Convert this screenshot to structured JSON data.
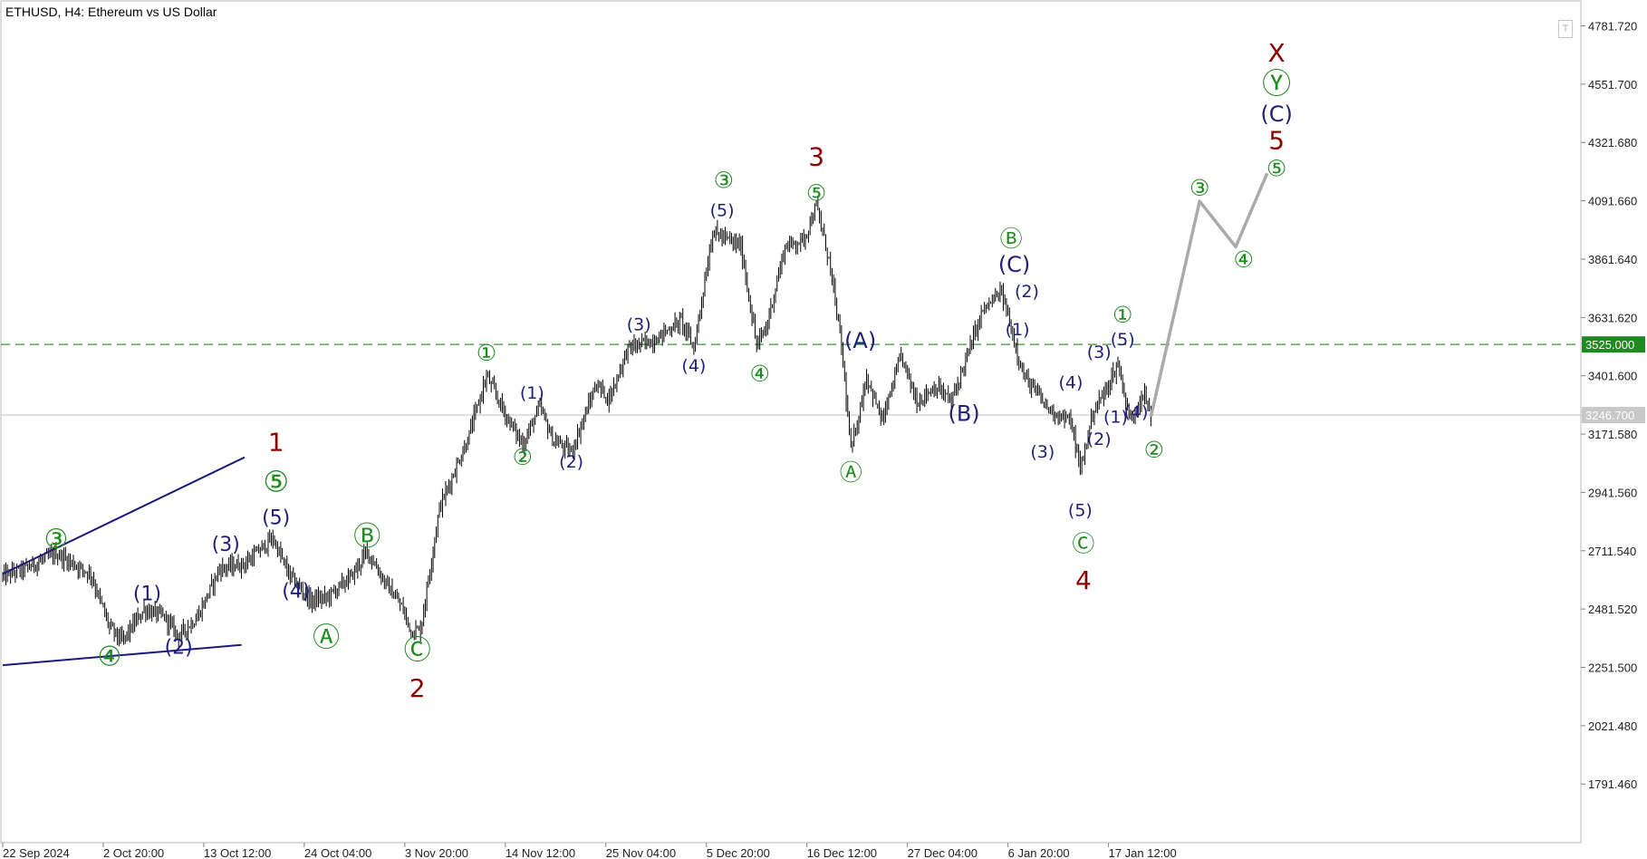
{
  "header": {
    "title": "ETHUSD, H4:  Ethereum vs US Dollar"
  },
  "colors": {
    "bg": "#ffffff",
    "bars": "#000000",
    "target_line": "#2e9e2e",
    "target_label_bg": "#1f8a1f",
    "price_line": "#c0c0c0",
    "price_label_bg": "#c8c8c8",
    "projection": "#aaaaaa",
    "trend_lines": "#1a1a7a",
    "wave_green": "#1f8a1f",
    "wave_navy": "#1f1f7a",
    "wave_red": "#8b0000"
  },
  "chart_data": {
    "type": "candlestick",
    "symbol": "ETHUSD",
    "timeframe": "H4",
    "title": "ETHUSD, H4:  Ethereum vs US Dollar",
    "ylim": [
      1560,
      4880
    ],
    "y_ticks": [
      "4781.720",
      "4551.700",
      "4321.680",
      "4091.660",
      "3861.640",
      "3631.620",
      "3401.600",
      "3171.580",
      "2941.560",
      "2711.540",
      "2481.520",
      "2251.500",
      "2021.480",
      "1791.460"
    ],
    "x_ticks": [
      "22 Sep 2024",
      "2 Oct 20:00",
      "13 Oct 12:00",
      "24 Oct 04:00",
      "3 Nov 20:00",
      "14 Nov 12:00",
      "25 Nov 04:00",
      "5 Dec 20:00",
      "16 Dec 12:00",
      "27 Dec 04:00",
      "6 Jan 20:00",
      "17 Jan 12:00"
    ],
    "x_tick_index": [
      0,
      64,
      128,
      192,
      256,
      320,
      384,
      448,
      512,
      576,
      640,
      704
    ],
    "n_bars": 732,
    "anchors": [
      [
        0,
        2610
      ],
      [
        14,
        2640
      ],
      [
        34,
        2700
      ],
      [
        56,
        2620
      ],
      [
        68,
        2410
      ],
      [
        76,
        2355
      ],
      [
        90,
        2480
      ],
      [
        103,
        2450
      ],
      [
        112,
        2375
      ],
      [
        124,
        2450
      ],
      [
        138,
        2640
      ],
      [
        154,
        2660
      ],
      [
        172,
        2760
      ],
      [
        182,
        2620
      ],
      [
        196,
        2515
      ],
      [
        206,
        2525
      ],
      [
        222,
        2610
      ],
      [
        232,
        2710
      ],
      [
        244,
        2580
      ],
      [
        254,
        2490
      ],
      [
        260,
        2395
      ],
      [
        266,
        2400
      ],
      [
        278,
        2880
      ],
      [
        296,
        3150
      ],
      [
        308,
        3400
      ],
      [
        320,
        3250
      ],
      [
        331,
        3130
      ],
      [
        342,
        3280
      ],
      [
        350,
        3150
      ],
      [
        362,
        3100
      ],
      [
        378,
        3370
      ],
      [
        386,
        3310
      ],
      [
        398,
        3510
      ],
      [
        414,
        3540
      ],
      [
        432,
        3620
      ],
      [
        440,
        3510
      ],
      [
        452,
        3970
      ],
      [
        470,
        3910
      ],
      [
        480,
        3520
      ],
      [
        486,
        3590
      ],
      [
        498,
        3910
      ],
      [
        510,
        3940
      ],
      [
        518,
        4070
      ],
      [
        526,
        3860
      ],
      [
        534,
        3520
      ],
      [
        540,
        3100
      ],
      [
        550,
        3400
      ],
      [
        560,
        3220
      ],
      [
        572,
        3480
      ],
      [
        582,
        3300
      ],
      [
        594,
        3360
      ],
      [
        604,
        3300
      ],
      [
        614,
        3480
      ],
      [
        624,
        3660
      ],
      [
        636,
        3730
      ],
      [
        650,
        3400
      ],
      [
        666,
        3270
      ],
      [
        680,
        3220
      ],
      [
        686,
        3030
      ],
      [
        694,
        3260
      ],
      [
        702,
        3340
      ],
      [
        710,
        3450
      ],
      [
        718,
        3220
      ],
      [
        726,
        3340
      ],
      [
        731,
        3240
      ]
    ],
    "current_price": "3246.700",
    "target_level": {
      "value": 3525,
      "label": "3525.000"
    },
    "projection_path": [
      [
        731,
        3240
      ],
      [
        762,
        4090
      ],
      [
        785,
        3910
      ],
      [
        805,
        4200
      ]
    ],
    "trend_lines": [
      {
        "from": [
          0,
          2620
        ],
        "to": [
          154,
          3080
        ]
      },
      {
        "from": [
          0,
          2260
        ],
        "to": [
          152,
          2340
        ]
      }
    ],
    "wave_labels": [
      {
        "text": "③",
        "i": 34,
        "price": 2700,
        "style": "green-circle",
        "pos": "above"
      },
      {
        "text": "④",
        "i": 68,
        "price": 2355,
        "style": "green-circle",
        "pos": "below"
      },
      {
        "text": "(1)",
        "i": 92,
        "price": 2495,
        "style": "navy-paren",
        "pos": "above"
      },
      {
        "text": "(2)",
        "i": 112,
        "price": 2375,
        "style": "navy-paren",
        "pos": "below"
      },
      {
        "text": "(3)",
        "i": 142,
        "price": 2690,
        "style": "navy-paren",
        "pos": "above"
      },
      {
        "text": "(4)",
        "i": 172,
        "price": 2555,
        "style": "navy-paren",
        "pos": "right"
      },
      {
        "text": "(5)",
        "i": 174,
        "price": 2795,
        "style": "navy-paren",
        "pos": "above"
      },
      {
        "text": "⑤",
        "i": 174,
        "price": 2985,
        "style": "green-circle-lg",
        "pos": "label"
      },
      {
        "text": "1",
        "i": 174,
        "price": 3140,
        "style": "red-lg",
        "pos": "label"
      },
      {
        "text": "Ⓐ",
        "i": 206,
        "price": 2430,
        "style": "green-circle",
        "pos": "below"
      },
      {
        "text": "Ⓑ",
        "i": 232,
        "price": 2710,
        "style": "green-circle",
        "pos": "above"
      },
      {
        "text": "Ⓒ",
        "i": 264,
        "price": 2380,
        "style": "green-circle",
        "pos": "below"
      },
      {
        "text": "2",
        "i": 264,
        "price": 2170,
        "style": "red-lg",
        "pos": "label"
      },
      {
        "text": "①",
        "i": 308,
        "price": 3440,
        "style": "green-circle-sm",
        "pos": "above"
      },
      {
        "text": "(1)",
        "i": 337,
        "price": 3290,
        "style": "navy-paren-sm",
        "pos": "above"
      },
      {
        "text": "②",
        "i": 331,
        "price": 3130,
        "style": "green-circle-sm",
        "pos": "below"
      },
      {
        "text": "(2)",
        "i": 362,
        "price": 3100,
        "style": "navy-paren-sm",
        "pos": "below"
      },
      {
        "text": "(3)",
        "i": 405,
        "price": 3560,
        "style": "navy-paren-sm",
        "pos": "above"
      },
      {
        "text": "(4)",
        "i": 440,
        "price": 3480,
        "style": "navy-paren-sm",
        "pos": "below"
      },
      {
        "text": "(5)",
        "i": 458,
        "price": 4010,
        "style": "navy-paren-sm",
        "pos": "above"
      },
      {
        "text": "③",
        "i": 459,
        "price": 4120,
        "style": "green-circle-sm",
        "pos": "above"
      },
      {
        "text": "④",
        "i": 482,
        "price": 3460,
        "style": "green-circle-sm",
        "pos": "below"
      },
      {
        "text": "⑤",
        "i": 518,
        "price": 4070,
        "style": "green-circle-sm",
        "pos": "above"
      },
      {
        "text": "3",
        "i": 518,
        "price": 4210,
        "style": "red-lg",
        "pos": "above"
      },
      {
        "text": "(A)",
        "i": 546,
        "price": 3490,
        "style": "navy-paren-md",
        "pos": "above"
      },
      {
        "text": "Ⓐ",
        "i": 540,
        "price": 3070,
        "style": "green-circle-sm",
        "pos": "below"
      },
      {
        "text": "(B)",
        "i": 612,
        "price": 3300,
        "style": "navy-paren-md",
        "pos": "below"
      },
      {
        "text": "Ⓑ",
        "i": 642,
        "price": 3890,
        "style": "green-circle-sm",
        "pos": "above"
      },
      {
        "text": "(C)",
        "i": 644,
        "price": 3790,
        "style": "navy-paren-md",
        "pos": "above"
      },
      {
        "text": "(2)",
        "i": 652,
        "price": 3690,
        "style": "navy-paren-sm",
        "pos": "above"
      },
      {
        "text": "(1)",
        "i": 646,
        "price": 3540,
        "style": "navy-paren-sm",
        "pos": "above"
      },
      {
        "text": "(3)",
        "i": 662,
        "price": 3140,
        "style": "navy-paren-sm",
        "pos": "below"
      },
      {
        "text": "(4)",
        "i": 680,
        "price": 3330,
        "style": "navy-paren-sm",
        "pos": "above"
      },
      {
        "text": "(5)",
        "i": 686,
        "price": 2910,
        "style": "navy-paren-sm",
        "pos": "below"
      },
      {
        "text": "Ⓒ",
        "i": 688,
        "price": 2790,
        "style": "green-circle-sm",
        "pos": "below"
      },
      {
        "text": "4",
        "i": 688,
        "price": 2650,
        "style": "red-lg",
        "pos": "below"
      },
      {
        "text": "(3)",
        "i": 698,
        "price": 3450,
        "style": "navy-paren-sm",
        "pos": "above"
      },
      {
        "text": "(1)",
        "i": 695,
        "price": 3240,
        "style": "navy-paren-sm",
        "pos": "right"
      },
      {
        "text": "(2)",
        "i": 698,
        "price": 3190,
        "style": "navy-paren-sm",
        "pos": "below"
      },
      {
        "text": "(4)",
        "i": 708,
        "price": 3260,
        "style": "navy-paren-sm",
        "pos": "right"
      },
      {
        "text": "(5)",
        "i": 713,
        "price": 3500,
        "style": "navy-paren-sm",
        "pos": "above"
      },
      {
        "text": "①",
        "i": 713,
        "price": 3590,
        "style": "green-circle-sm",
        "pos": "above"
      },
      {
        "text": "②",
        "i": 733,
        "price": 3160,
        "style": "green-circle-sm",
        "pos": "below"
      },
      {
        "text": "③",
        "i": 762,
        "price": 4090,
        "style": "green-circle-sm",
        "pos": "above"
      },
      {
        "text": "④",
        "i": 790,
        "price": 3910,
        "style": "green-circle-sm",
        "pos": "below"
      },
      {
        "text": "⑤",
        "i": 811,
        "price": 4220,
        "style": "green-circle-sm",
        "pos": "label"
      },
      {
        "text": "5",
        "i": 811,
        "price": 4330,
        "style": "red-lg",
        "pos": "label"
      },
      {
        "text": "(C)",
        "i": 811,
        "price": 4435,
        "style": "navy-paren-md",
        "pos": "label"
      },
      {
        "text": "Ⓨ",
        "i": 811,
        "price": 4555,
        "style": "green-circle-lg",
        "pos": "label"
      },
      {
        "text": "X",
        "i": 811,
        "price": 4675,
        "style": "red-lg",
        "pos": "label"
      }
    ]
  }
}
